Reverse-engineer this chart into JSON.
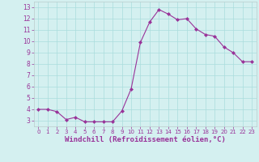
{
  "x": [
    0,
    1,
    2,
    3,
    4,
    5,
    6,
    7,
    8,
    9,
    10,
    11,
    12,
    13,
    14,
    15,
    16,
    17,
    18,
    19,
    20,
    21,
    22,
    23
  ],
  "y": [
    4.0,
    4.0,
    3.8,
    3.1,
    3.3,
    2.9,
    2.9,
    2.9,
    2.9,
    3.85,
    5.8,
    9.9,
    11.7,
    12.8,
    12.4,
    11.9,
    12.0,
    11.1,
    10.6,
    10.45,
    9.5,
    9.0,
    8.2,
    8.2
  ],
  "line_color": "#993399",
  "marker": "D",
  "marker_size": 2,
  "xlabel": "Windchill (Refroidissement éolien,°C)",
  "xlim": [
    -0.5,
    23.5
  ],
  "ylim": [
    2.5,
    13.5
  ],
  "yticks": [
    3,
    4,
    5,
    6,
    7,
    8,
    9,
    10,
    11,
    12,
    13
  ],
  "xticks": [
    0,
    1,
    2,
    3,
    4,
    5,
    6,
    7,
    8,
    9,
    10,
    11,
    12,
    13,
    14,
    15,
    16,
    17,
    18,
    19,
    20,
    21,
    22,
    23
  ],
  "background_color": "#d4f0f0",
  "grid_color": "#aadddd",
  "line_grid_color": "#bbcccc",
  "axis_label_color": "#993399",
  "tick_color": "#993399",
  "xlabel_fontsize": 6.5,
  "tick_fontsize_x": 5.0,
  "tick_fontsize_y": 5.5
}
